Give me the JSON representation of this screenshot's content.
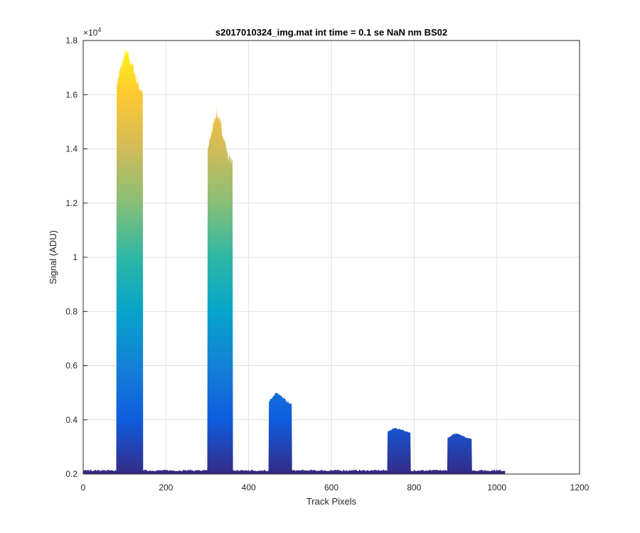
{
  "chart_data": {
    "type": "area",
    "title": "s2017010324_img.mat int time = 0.1 se  NaN nm BS02",
    "xlabel": "Track Pixels",
    "ylabel": "Signal (ADU)",
    "xlim": [
      0,
      1200
    ],
    "ylim": [
      2000,
      18000
    ],
    "x_ticks": [
      "0",
      "200",
      "400",
      "600",
      "800",
      "1000",
      "1200"
    ],
    "y_ticks": [
      "0.2",
      "0.4",
      "0.6",
      "0.8",
      "1",
      "1.2",
      "1.4",
      "1.6",
      "1.8"
    ],
    "y_exponent": {
      "base": "×10",
      "power": "4"
    },
    "grid": true,
    "baseline_level": 2100,
    "data_extent_x": [
      0,
      1020
    ],
    "peaks": [
      {
        "x_start": 80,
        "x_end": 145,
        "max_value": 17600,
        "plateau_value": 16700
      },
      {
        "x_start": 300,
        "x_end": 362,
        "max_value": 15400,
        "plateau_value": 14000
      },
      {
        "x_start": 448,
        "x_end": 505,
        "max_value": 5000,
        "plateau_value": 4700
      },
      {
        "x_start": 735,
        "x_end": 792,
        "max_value": 3700,
        "plateau_value": 3600
      },
      {
        "x_start": 880,
        "x_end": 940,
        "max_value": 3500,
        "plateau_value": 3350
      }
    ],
    "colormap": [
      "#352a87",
      "#0f5cdd",
      "#1481d6",
      "#06a4ca",
      "#2eb7a4",
      "#87bf77",
      "#d1bb59",
      "#fec832",
      "#f9fb0e"
    ]
  }
}
